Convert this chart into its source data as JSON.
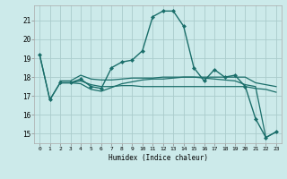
{
  "title": "",
  "xlabel": "Humidex (Indice chaleur)",
  "background_color": "#cceaea",
  "grid_color": "#aacccc",
  "line_color": "#1a6e6a",
  "xlim": [
    -0.5,
    23.5
  ],
  "ylim": [
    14.5,
    21.8
  ],
  "yticks": [
    15,
    16,
    17,
    18,
    19,
    20,
    21
  ],
  "xticks": [
    0,
    1,
    2,
    3,
    4,
    5,
    6,
    7,
    8,
    9,
    10,
    11,
    12,
    13,
    14,
    15,
    16,
    17,
    18,
    19,
    20,
    21,
    22,
    23
  ],
  "series": [
    {
      "x": [
        0,
        1,
        2,
        3,
        4,
        5,
        6,
        7,
        8,
        9,
        10,
        11,
        12,
        13,
        14,
        15,
        16,
        17,
        18,
        19,
        20,
        21,
        22,
        23
      ],
      "y": [
        19.2,
        16.8,
        17.7,
        17.7,
        17.9,
        17.5,
        17.4,
        18.5,
        18.8,
        18.9,
        19.4,
        21.2,
        21.5,
        21.5,
        20.7,
        18.5,
        17.8,
        18.4,
        18.0,
        18.1,
        17.5,
        15.8,
        14.8,
        15.1
      ],
      "marker": "D",
      "markersize": 2.0,
      "linewidth": 1.0
    },
    {
      "x": [
        2,
        3,
        4,
        5,
        6,
        7,
        8,
        9,
        10,
        11,
        12,
        13,
        14,
        15,
        16,
        17,
        18,
        19,
        20,
        21,
        22,
        23
      ],
      "y": [
        17.8,
        17.8,
        18.1,
        17.9,
        17.85,
        17.85,
        17.9,
        17.95,
        17.95,
        17.95,
        18.0,
        18.0,
        18.0,
        18.0,
        18.0,
        18.0,
        18.0,
        18.0,
        18.0,
        17.7,
        17.6,
        17.5
      ],
      "marker": null,
      "markersize": 0,
      "linewidth": 0.9
    },
    {
      "x": [
        2,
        3,
        4,
        5,
        6,
        7,
        8,
        9,
        10,
        11,
        12,
        13,
        14,
        15,
        16,
        17,
        18,
        19,
        20,
        21,
        22,
        23
      ],
      "y": [
        17.7,
        17.7,
        17.8,
        17.6,
        17.5,
        17.5,
        17.55,
        17.55,
        17.5,
        17.5,
        17.5,
        17.5,
        17.5,
        17.5,
        17.5,
        17.5,
        17.5,
        17.5,
        17.5,
        17.4,
        17.35,
        17.2
      ],
      "marker": null,
      "markersize": 0,
      "linewidth": 0.9
    },
    {
      "x": [
        0,
        1,
        2,
        3,
        4,
        5,
        6,
        7,
        8,
        9,
        10,
        11,
        12,
        13,
        14,
        15,
        16,
        17,
        18,
        19,
        20,
        21,
        22,
        23
      ],
      "y": [
        19.2,
        16.8,
        17.7,
        17.7,
        17.65,
        17.35,
        17.25,
        17.45,
        17.65,
        17.75,
        17.85,
        17.9,
        17.9,
        17.95,
        18.0,
        18.0,
        17.95,
        17.9,
        17.85,
        17.8,
        17.6,
        17.5,
        14.8,
        15.1
      ],
      "marker": null,
      "markersize": 0,
      "linewidth": 0.9
    }
  ]
}
